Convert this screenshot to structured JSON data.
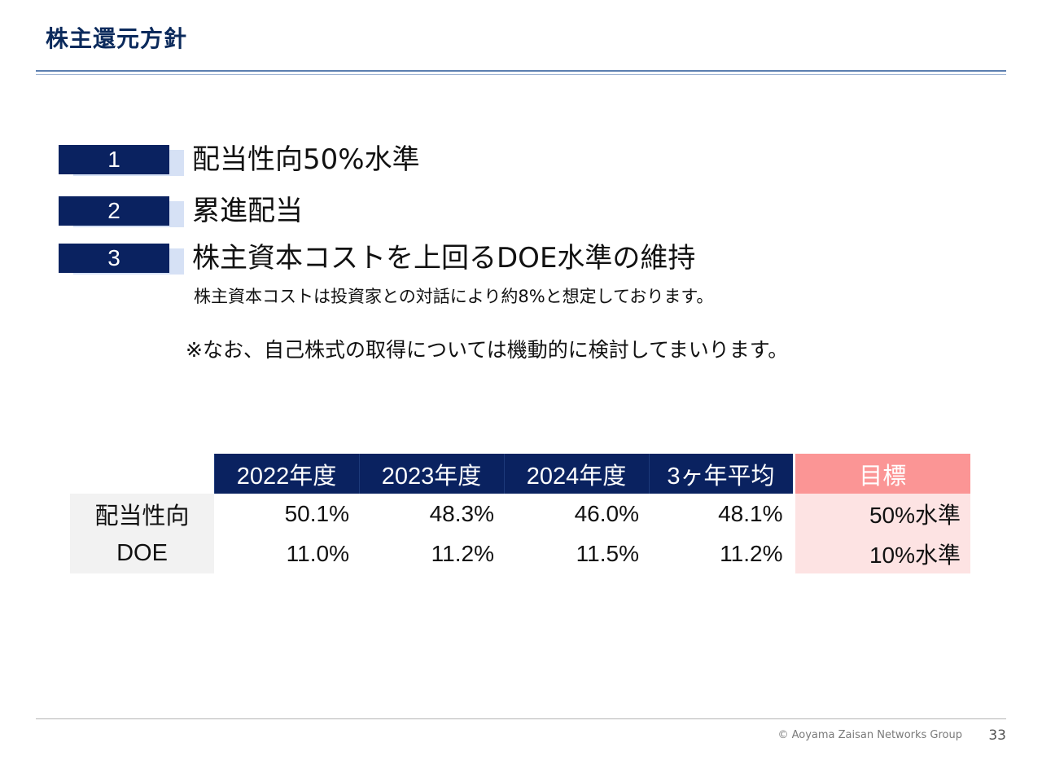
{
  "slide": {
    "title": "株主還元方針"
  },
  "policies": [
    {
      "number": "1",
      "text": "配当性向50%水準"
    },
    {
      "number": "2",
      "text": "累進配当"
    },
    {
      "number": "3",
      "text": "株主資本コストを上回るDOE水準の維持"
    }
  ],
  "policy3_note": "株主資本コストは投資家との対話により約8%と想定しております。",
  "treasury_note": "※なお、自己株式の取得については機動的に検討してまいります。",
  "table": {
    "headers": [
      "2022年度",
      "2023年度",
      "2024年度",
      "3ヶ年平均"
    ],
    "target_header": "目標",
    "rows": [
      {
        "label": "配当性向",
        "values": [
          "50.1%",
          "48.3%",
          "46.0%",
          "48.1%"
        ],
        "target": "50%水準"
      },
      {
        "label": "DOE",
        "values": [
          "11.0%",
          "11.2%",
          "11.5%",
          "11.2%"
        ],
        "target": "10%水準"
      }
    ]
  },
  "footer": {
    "copyright": "© Aoyama Zaisan Networks Group",
    "page_number": "33"
  },
  "colors": {
    "title": "#0b2a5c",
    "navy": "#0a2260",
    "target_header": "#fb9595",
    "target_cell": "#fde3e3",
    "label_cell": "#f2f2f2"
  }
}
